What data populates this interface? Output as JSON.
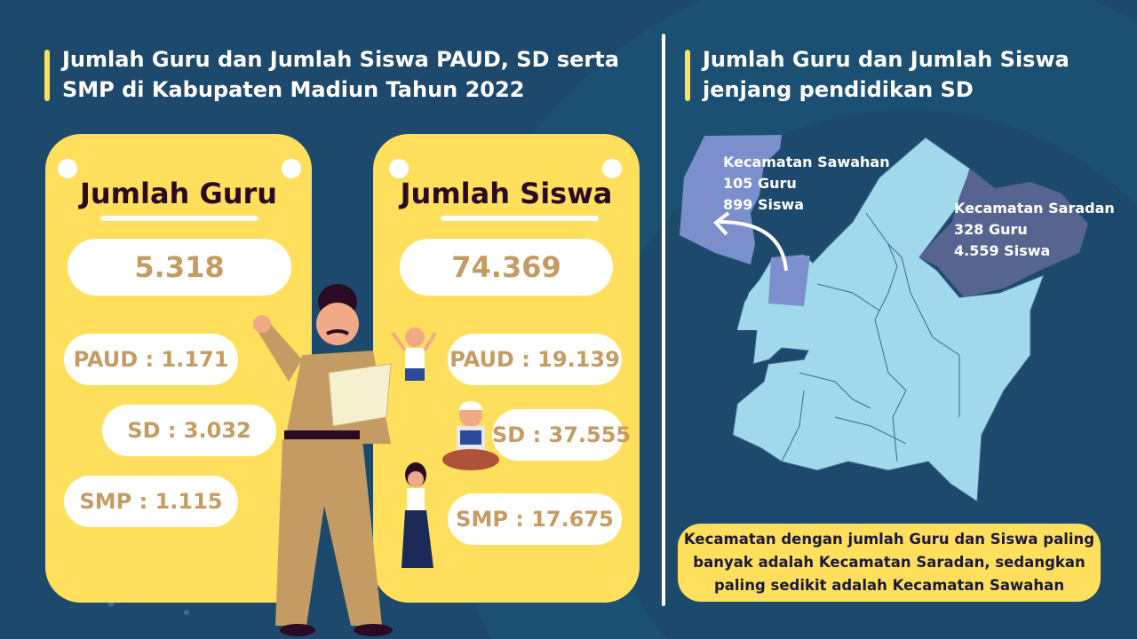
{
  "colors": {
    "background": "#1d4a6c",
    "card": "#ffdf5c",
    "number": "#c49c63",
    "map_base": "#a1d9ea",
    "sawahan": "#7a8fcb",
    "saradan": "#56658f"
  },
  "left": {
    "title_line1": "Jumlah Guru dan Jumlah Siswa PAUD, SD serta",
    "title_line2": "SMP di Kabupaten Madiun Tahun 2022"
  },
  "guru": {
    "heading": "Jumlah Guru",
    "total": "5.318",
    "paud": "PAUD : 1.171",
    "sd": "SD : 3.032",
    "smp": "SMP : 1.115"
  },
  "siswa": {
    "heading": "Jumlah Siswa",
    "total": "74.369",
    "paud": "PAUD : 19.139",
    "sd": "SD : 37.555",
    "smp": "SMP : 17.675"
  },
  "right": {
    "title_line1": "Jumlah Guru dan Jumlah Siswa",
    "title_line2": "jenjang pendidikan SD"
  },
  "map": {
    "sawahan": {
      "name": "Kecamatan Sawahan",
      "guru": "105 Guru",
      "siswa": "899 Siswa"
    },
    "saradan": {
      "name": "Kecamatan Saradan",
      "guru": "328 Guru",
      "siswa": "4.559 Siswa"
    }
  },
  "note": {
    "line1": "Kecamatan dengan jumlah Guru dan Siswa paling",
    "line2": "banyak adalah Kecamatan Saradan, sedangkan",
    "line3": "paling sedikit adalah Kecamatan Sawahan"
  }
}
